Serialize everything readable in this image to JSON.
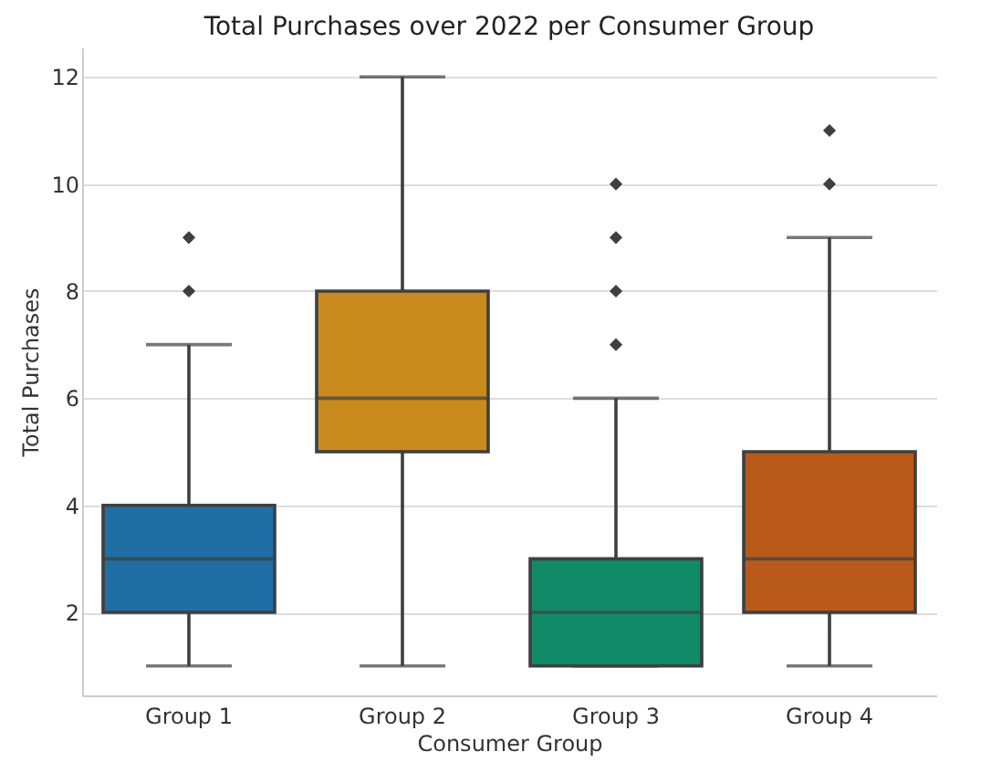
{
  "chart_data": {
    "type": "box",
    "title": "Total Purchases over 2022 per Consumer Group",
    "xlabel": "Consumer Group",
    "ylabel": "Total Purchases",
    "categories": [
      "Group 1",
      "Group 2",
      "Group 3",
      "Group 4"
    ],
    "boxes": [
      {
        "low": 1,
        "q1": 2,
        "median": 3,
        "q3": 4,
        "high": 7,
        "outliers": [
          8,
          9
        ]
      },
      {
        "low": 1,
        "q1": 5,
        "median": 6,
        "q3": 8,
        "high": 12
      },
      {
        "low": 1,
        "q1": 1,
        "median": 2,
        "q3": 3,
        "high": 6,
        "outliers": [
          7,
          8,
          9,
          10
        ]
      },
      {
        "low": 1,
        "q1": 2,
        "median": 3,
        "q3": 5,
        "high": 9,
        "outliers": [
          10,
          11
        ]
      }
    ],
    "colors": [
      "#1f6fa5",
      "#c98a1e",
      "#118a68",
      "#b95a1a"
    ],
    "ylim": [
      0.45,
      12.55
    ],
    "yticks": [
      2,
      4,
      6,
      8,
      10,
      12
    ],
    "grid": "y"
  }
}
